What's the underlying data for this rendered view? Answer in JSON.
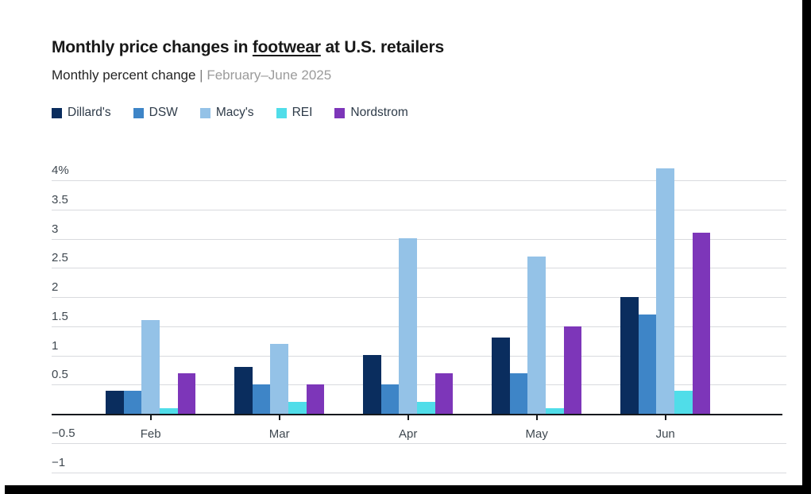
{
  "header": {
    "title_prefix": "Monthly price changes in ",
    "title_underlined": "footwear",
    "title_suffix": " at U.S. retailers",
    "subtitle_dark": "Monthly percent change",
    "subtitle_separator": " | ",
    "subtitle_muted": "February–June 2025"
  },
  "chart_data": {
    "type": "bar",
    "title": "Monthly price changes in footwear at U.S. retailers",
    "subtitle": "Monthly percent change | February–June 2025",
    "categories": [
      "Feb",
      "Mar",
      "Apr",
      "May",
      "Jun"
    ],
    "series": [
      {
        "name": "Dillard's",
        "color": "#0a2d5e",
        "values": [
          0.4,
          0.8,
          1.0,
          1.3,
          2.0
        ]
      },
      {
        "name": "DSW",
        "color": "#3e85c7",
        "values": [
          0.4,
          0.5,
          0.5,
          0.7,
          1.7
        ]
      },
      {
        "name": "Macy's",
        "color": "#94c2e7",
        "values": [
          1.6,
          1.2,
          3.0,
          2.7,
          4.2
        ]
      },
      {
        "name": "REI",
        "color": "#50dde9",
        "values": [
          0.1,
          0.2,
          0.2,
          0.1,
          0.4
        ]
      },
      {
        "name": "Nordstrom",
        "color": "#7d36b9",
        "values": [
          0.7,
          0.5,
          0.7,
          1.5,
          3.1
        ]
      }
    ],
    "xlabel": "",
    "ylabel": "Monthly percent change",
    "ylim": [
      -1,
      4
    ],
    "grid": true,
    "legend_position": "top",
    "y_ticks": [
      {
        "value": 4,
        "label": "4%"
      },
      {
        "value": 3.5,
        "label": "3.5"
      },
      {
        "value": 3,
        "label": "3"
      },
      {
        "value": 2.5,
        "label": "2.5"
      },
      {
        "value": 2,
        "label": "2"
      },
      {
        "value": 1.5,
        "label": "1.5"
      },
      {
        "value": 1,
        "label": "1"
      },
      {
        "value": 0.5,
        "label": "0.5"
      },
      {
        "value": -0.5,
        "label": "−0.5"
      },
      {
        "value": -1,
        "label": "−1"
      }
    ]
  }
}
